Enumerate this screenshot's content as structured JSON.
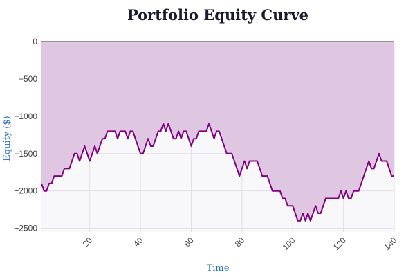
{
  "chart_data": {
    "type": "area",
    "title": "Portfolio Equity Curve",
    "xlabel": "Time",
    "ylabel": "Equity ($)",
    "xlim": [
      1,
      140
    ],
    "ylim": [
      -2550,
      0
    ],
    "x_ticks": [
      20,
      40,
      60,
      80,
      100,
      120,
      140
    ],
    "x_tick_labels": [
      "20",
      "40",
      "60",
      "80",
      "100",
      "120",
      "140"
    ],
    "y_ticks": [
      0,
      -500,
      -1000,
      -1500,
      -2000,
      -2500
    ],
    "y_tick_labels": [
      "0",
      "−500",
      "−1000",
      "−1500",
      "−2000",
      "−2500"
    ],
    "grid": true,
    "legend": "none",
    "colors": {
      "line": "#800080",
      "fill": "#dfc6e1",
      "plot_bg": "#f8f8fb",
      "grid": "#e3dde8",
      "zero_line": "#7a6a7a",
      "axis_title": "#2a6fc0"
    },
    "series": [
      {
        "x": [
          1,
          2,
          3,
          4,
          5,
          6,
          7,
          8,
          9,
          10,
          11,
          12,
          13,
          14,
          15,
          16,
          17,
          18,
          19,
          20,
          21,
          22,
          23,
          24,
          25,
          26,
          27,
          28,
          29,
          30,
          31,
          32,
          33,
          34,
          35,
          36,
          37,
          38,
          39,
          40,
          41,
          42,
          43,
          44,
          45,
          46,
          47,
          48,
          49,
          50,
          51,
          52,
          53,
          54,
          55,
          56,
          57,
          58,
          59,
          60,
          61,
          62,
          63,
          64,
          65,
          66,
          67,
          68,
          69,
          70,
          71,
          72,
          73,
          74,
          75,
          76,
          77,
          78,
          79,
          80,
          81,
          82,
          83,
          84,
          85,
          86,
          87,
          88,
          89,
          90,
          91,
          92,
          93,
          94,
          95,
          96,
          97,
          98,
          99,
          100,
          101,
          102,
          103,
          104,
          105,
          106,
          107,
          108,
          109,
          110,
          111,
          112,
          113,
          114,
          115,
          116,
          117,
          118,
          119,
          120,
          121,
          122,
          123,
          124,
          125,
          126,
          127,
          128,
          129,
          130,
          131,
          132,
          133,
          134,
          135,
          136,
          137,
          138,
          139,
          140
        ],
        "y": [
          -1900,
          -2000,
          -2000,
          -1900,
          -1900,
          -1800,
          -1800,
          -1800,
          -1800,
          -1700,
          -1700,
          -1700,
          -1600,
          -1500,
          -1500,
          -1600,
          -1500,
          -1400,
          -1500,
          -1600,
          -1500,
          -1400,
          -1500,
          -1400,
          -1300,
          -1300,
          -1200,
          -1200,
          -1200,
          -1200,
          -1300,
          -1200,
          -1200,
          -1200,
          -1300,
          -1200,
          -1200,
          -1300,
          -1400,
          -1500,
          -1500,
          -1400,
          -1300,
          -1400,
          -1400,
          -1300,
          -1200,
          -1200,
          -1100,
          -1200,
          -1100,
          -1200,
          -1300,
          -1300,
          -1200,
          -1300,
          -1200,
          -1200,
          -1300,
          -1400,
          -1300,
          -1300,
          -1200,
          -1200,
          -1200,
          -1200,
          -1100,
          -1200,
          -1300,
          -1200,
          -1200,
          -1300,
          -1400,
          -1500,
          -1500,
          -1500,
          -1600,
          -1700,
          -1800,
          -1700,
          -1600,
          -1700,
          -1600,
          -1600,
          -1600,
          -1600,
          -1700,
          -1800,
          -1800,
          -1800,
          -1900,
          -2000,
          -2000,
          -2000,
          -2000,
          -2100,
          -2100,
          -2200,
          -2200,
          -2200,
          -2300,
          -2400,
          -2400,
          -2300,
          -2400,
          -2300,
          -2400,
          -2300,
          -2200,
          -2300,
          -2300,
          -2200,
          -2100,
          -2100,
          -2100,
          -2100,
          -2100,
          -2100,
          -2000,
          -2100,
          -2000,
          -2100,
          -2100,
          -2000,
          -2000,
          -2000,
          -1900,
          -1800,
          -1700,
          -1600,
          -1700,
          -1700,
          -1600,
          -1500,
          -1600,
          -1600,
          -1600,
          -1700,
          -1800,
          -1800
        ]
      }
    ]
  }
}
